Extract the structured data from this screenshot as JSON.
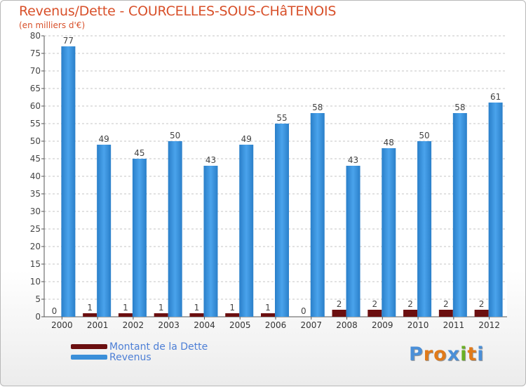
{
  "chart_data": {
    "type": "bar",
    "title": "Revenus/Dette - COURCELLES-SOUS-CHâTENOIS",
    "subtitle": "(en milliers d'€)",
    "categories": [
      "2000",
      "2001",
      "2002",
      "2003",
      "2004",
      "2005",
      "2006",
      "2007",
      "2008",
      "2009",
      "2010",
      "2011",
      "2012"
    ],
    "series": [
      {
        "name": "Montant de la Dette",
        "color": "#6b0f10",
        "values": [
          0,
          1,
          1,
          1,
          1,
          1,
          1,
          0,
          2,
          2,
          2,
          2,
          2
        ]
      },
      {
        "name": "Revenus",
        "color": "#3b8fd9",
        "values": [
          77,
          49,
          45,
          50,
          43,
          49,
          55,
          58,
          43,
          48,
          50,
          58,
          61
        ]
      }
    ],
    "ylim": [
      0,
      80
    ],
    "yticks": [
      0,
      5,
      10,
      15,
      20,
      25,
      30,
      35,
      40,
      45,
      50,
      55,
      60,
      65,
      70,
      75,
      80
    ],
    "grid": "horizontal-dashed",
    "legend": "bottom-left"
  },
  "logo": {
    "letters": [
      "P",
      "r",
      "o",
      "x",
      "i",
      "t",
      "i"
    ],
    "colors": [
      "#4a8fd8",
      "#e07a1a",
      "#e07a1a",
      "#4a8fd8",
      "#6ab023",
      "#e07a1a",
      "#4a8fd8"
    ]
  }
}
